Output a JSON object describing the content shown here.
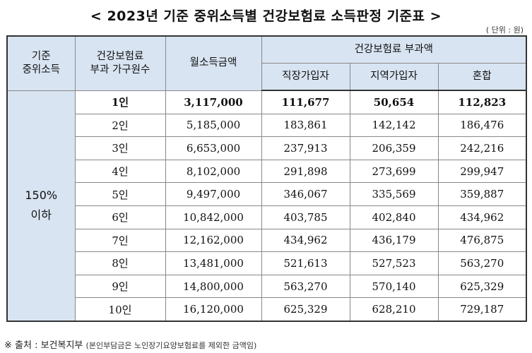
{
  "title": "< 2023년 기준 중위소득별 건강보험료 소득판정 기준표 >",
  "unit": "( 단위 : 원)",
  "header": {
    "col_income_line1": "기준",
    "col_income_line2": "중위소득",
    "col_household_line1": "건강보험료",
    "col_household_line2": "부과 가구원수",
    "col_monthly": "월소득금액",
    "col_group": "건강보험료 부과액",
    "col_employee": "직장가입자",
    "col_regional": "지역가입자",
    "col_mixed": "혼합"
  },
  "group_label_line1": "150%",
  "group_label_line2": "이하",
  "rows": [
    {
      "size": "1인",
      "monthly": "3,117,000",
      "employee": "111,677",
      "regional": "50,654",
      "mixed": "112,823"
    },
    {
      "size": "2인",
      "monthly": "5,185,000",
      "employee": "183,861",
      "regional": "142,142",
      "mixed": "186,476"
    },
    {
      "size": "3인",
      "monthly": "6,653,000",
      "employee": "237,913",
      "regional": "206,359",
      "mixed": "242,216"
    },
    {
      "size": "4인",
      "monthly": "8,102,000",
      "employee": "291,898",
      "regional": "273,699",
      "mixed": "299,947"
    },
    {
      "size": "5인",
      "monthly": "9,497,000",
      "employee": "346,067",
      "regional": "335,569",
      "mixed": "359,887"
    },
    {
      "size": "6인",
      "monthly": "10,842,000",
      "employee": "403,785",
      "regional": "402,840",
      "mixed": "434,962"
    },
    {
      "size": "7인",
      "monthly": "12,162,000",
      "employee": "434,962",
      "regional": "436,179",
      "mixed": "476,875"
    },
    {
      "size": "8인",
      "monthly": "13,481,000",
      "employee": "521,613",
      "regional": "527,523",
      "mixed": "563,270"
    },
    {
      "size": "9인",
      "monthly": "14,800,000",
      "employee": "563,270",
      "regional": "570,140",
      "mixed": "625,329"
    },
    {
      "size": "10인",
      "monthly": "16,120,000",
      "employee": "625,329",
      "regional": "628,210",
      "mixed": "729,187"
    }
  ],
  "source": "※ 출처 : 보건복지부",
  "source_note": "(본인부담금은 노인장기요양보험료를 제외한 금액임)",
  "colors": {
    "header_bg": "#d8e4f2",
    "border": "#333333"
  }
}
